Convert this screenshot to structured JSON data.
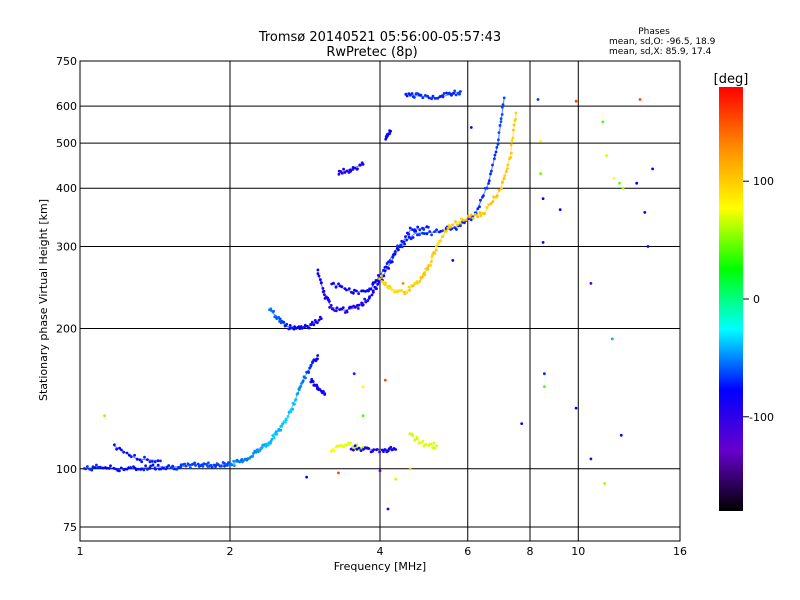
{
  "chart_data": {
    "type": "scatter",
    "title": "Tromsø 20140521 05:56:00-05:57:43",
    "subtitle": "RwPretec (8p)",
    "xlabel": "Frequency [MHz]",
    "ylabel": "Stationary phase Virtual Height [km]",
    "x_scale": "log",
    "y_scale": "log",
    "xlim": [
      1,
      16
    ],
    "ylim": [
      70,
      750
    ],
    "x_ticks": [
      1,
      2,
      4,
      6,
      8,
      10,
      16
    ],
    "y_ticks": [
      75,
      100,
      200,
      300,
      400,
      500,
      600,
      750
    ],
    "grid": true,
    "phases_title": "Phases",
    "phases_o": "mean, sd,O: -96.5, 18.9",
    "phases_x": "mean, sd,X:  85.9, 17.4",
    "colorbar": {
      "label": "[deg]",
      "range": [
        -180,
        180
      ],
      "ticks": [
        100,
        0,
        -100
      ],
      "colors": [
        "#ff0000",
        "#ff8c00",
        "#ffff00",
        "#00ff00",
        "#00ffff",
        "#0000ff",
        "#6600cc",
        "#000000"
      ]
    },
    "traces": [
      {
        "points": [
          [
            1.02,
            100,
            -90
          ],
          [
            1.1,
            101,
            -95
          ],
          [
            1.2,
            100,
            -100
          ],
          [
            1.3,
            100,
            -98
          ],
          [
            1.4,
            101,
            -95
          ],
          [
            1.5,
            101,
            -92
          ],
          [
            1.6,
            101,
            -88
          ],
          [
            1.7,
            102,
            -85
          ],
          [
            1.8,
            102,
            -82
          ],
          [
            1.9,
            102,
            -85
          ],
          [
            2.0,
            102,
            -82
          ]
        ]
      },
      {
        "points": [
          [
            1.17,
            112,
            -100
          ],
          [
            1.3,
            105,
            -95
          ],
          [
            1.45,
            104,
            -92
          ]
        ]
      },
      {
        "points": [
          [
            2.0,
            102,
            -70
          ],
          [
            2.1,
            104,
            -70
          ],
          [
            2.2,
            106,
            -70
          ],
          [
            2.3,
            111,
            -60
          ],
          [
            2.4,
            113,
            -55
          ],
          [
            2.5,
            121,
            -55
          ],
          [
            2.6,
            128,
            -50
          ],
          [
            2.7,
            140,
            -55
          ],
          [
            2.8,
            155,
            -70
          ],
          [
            2.9,
            165,
            -90
          ],
          [
            3.0,
            175,
            -110
          ]
        ]
      },
      {
        "points": [
          [
            2.9,
            155,
            -100
          ],
          [
            3.0,
            150,
            -105
          ],
          [
            3.1,
            145,
            -110
          ]
        ]
      },
      {
        "points": [
          [
            2.4,
            220,
            -70
          ],
          [
            2.5,
            210,
            -80
          ],
          [
            2.6,
            202,
            -95
          ],
          [
            2.75,
            201,
            -100
          ],
          [
            2.9,
            203,
            -105
          ],
          [
            3.05,
            210,
            -110
          ]
        ]
      },
      {
        "points": [
          [
            3.0,
            265,
            -105
          ],
          [
            3.1,
            235,
            -110
          ],
          [
            3.2,
            222,
            -115
          ],
          [
            3.4,
            219,
            -115
          ],
          [
            3.6,
            222,
            -112
          ],
          [
            3.8,
            232,
            -110
          ],
          [
            4.0,
            252,
            -105
          ],
          [
            4.3,
            290,
            -100
          ],
          [
            4.6,
            325,
            -95
          ],
          [
            5.0,
            330,
            -92
          ]
        ]
      },
      {
        "points": [
          [
            3.2,
            250,
            -110
          ],
          [
            3.5,
            240,
            -105
          ],
          [
            3.8,
            240,
            -100
          ],
          [
            4.0,
            260,
            -95
          ],
          [
            4.3,
            295,
            -92
          ],
          [
            4.7,
            320,
            -90
          ],
          [
            5.2,
            322,
            -90
          ],
          [
            5.7,
            330,
            -92
          ],
          [
            6.2,
            350,
            -90
          ],
          [
            6.6,
            410,
            -88
          ],
          [
            6.9,
            500,
            -85
          ],
          [
            7.1,
            625,
            -82
          ]
        ]
      },
      {
        "points": [
          [
            4.0,
            258,
            115
          ],
          [
            4.2,
            243,
            112
          ],
          [
            4.5,
            240,
            115
          ],
          [
            4.8,
            252,
            118
          ],
          [
            5.0,
            270,
            118
          ],
          [
            5.2,
            300,
            115
          ],
          [
            5.5,
            332,
            118
          ],
          [
            6.0,
            345,
            120
          ],
          [
            6.5,
            355,
            120
          ],
          [
            7.0,
            400,
            120
          ],
          [
            7.3,
            470,
            118
          ],
          [
            7.5,
            580,
            115
          ]
        ]
      },
      {
        "points": [
          [
            3.2,
            110,
            100
          ],
          [
            3.4,
            113,
            90
          ],
          [
            3.7,
            111,
            60
          ]
        ]
      },
      {
        "points": [
          [
            3.5,
            111,
            -115
          ],
          [
            3.8,
            110,
            -112
          ],
          [
            4.1,
            110,
            -110
          ],
          [
            4.3,
            110,
            -108
          ]
        ]
      },
      {
        "points": [
          [
            3.3,
            430,
            -115
          ],
          [
            3.5,
            440,
            -110
          ],
          [
            3.7,
            450,
            -105
          ]
        ]
      },
      {
        "points": [
          [
            4.5,
            640,
            -92
          ],
          [
            4.8,
            630,
            -90
          ],
          [
            5.2,
            625,
            -92
          ],
          [
            5.5,
            635,
            -88
          ],
          [
            5.8,
            645,
            -90
          ]
        ]
      },
      {
        "points": [
          [
            4.6,
            118,
            80
          ],
          [
            4.9,
            113,
            90
          ],
          [
            5.2,
            112,
            85
          ]
        ]
      },
      {
        "points": [
          [
            4.1,
            510,
            -100
          ],
          [
            4.2,
            530,
            -100
          ]
        ]
      }
    ],
    "scatter_points": [
      [
        1.12,
        130,
        60
      ],
      [
        2.85,
        96,
        -100
      ],
      [
        3.3,
        98,
        160
      ],
      [
        3.55,
        160,
        -90
      ],
      [
        3.7,
        150,
        100
      ],
      [
        3.7,
        130,
        30
      ],
      [
        4.0,
        99,
        -140
      ],
      [
        4.15,
        82,
        -110
      ],
      [
        4.3,
        95,
        80
      ],
      [
        4.1,
        155,
        160
      ],
      [
        4.45,
        250,
        140
      ],
      [
        4.6,
        100,
        120
      ],
      [
        5.6,
        280,
        -100
      ],
      [
        6.1,
        540,
        -100
      ],
      [
        7.7,
        125,
        -100
      ],
      [
        8.3,
        620,
        -90
      ],
      [
        8.4,
        430,
        40
      ],
      [
        8.5,
        380,
        -100
      ],
      [
        8.5,
        306,
        -100
      ],
      [
        8.55,
        150,
        30
      ],
      [
        8.55,
        160,
        -90
      ],
      [
        8.4,
        505,
        100
      ],
      [
        9.2,
        360,
        -100
      ],
      [
        9.9,
        615,
        160
      ],
      [
        9.9,
        135,
        -100
      ],
      [
        10.6,
        250,
        -130
      ],
      [
        11.2,
        555,
        30
      ],
      [
        11.7,
        190,
        -60
      ],
      [
        11.4,
        470,
        80
      ],
      [
        12.1,
        410,
        40
      ],
      [
        12.2,
        118,
        -100
      ],
      [
        12.3,
        400,
        60
      ],
      [
        13.3,
        620,
        160
      ],
      [
        13.6,
        355,
        -100
      ],
      [
        13.8,
        300,
        -100
      ],
      [
        14.1,
        440,
        -100
      ],
      [
        11.3,
        93,
        60
      ],
      [
        10.6,
        105,
        -120
      ],
      [
        11.8,
        420,
        100
      ],
      [
        13.1,
        410,
        -100
      ]
    ]
  }
}
